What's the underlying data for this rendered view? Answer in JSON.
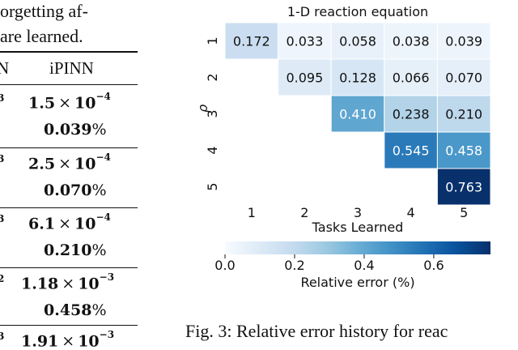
{
  "paper": {
    "text_line_1": "orgetting af-",
    "text_line_2": "are learned.",
    "caption": "Fig. 3: Relative error history for reac"
  },
  "table": {
    "headers": [
      "N",
      "iPINN"
    ],
    "rows": [
      {
        "prev_sup": "3",
        "mantissa": "1.5",
        "exponent": "−4",
        "percent": "0.039"
      },
      {
        "prev_sup": "3",
        "mantissa": "2.5",
        "exponent": "−4",
        "percent": "0.070"
      },
      {
        "prev_sup": "3",
        "mantissa": "6.1",
        "exponent": "−4",
        "percent": "0.210"
      },
      {
        "prev_sup": "2",
        "mantissa": "1.18",
        "exponent": "−3",
        "percent": "0.458"
      },
      {
        "prev_sup": "3",
        "mantissa": "1.91",
        "exponent": "−3",
        "percent": ""
      }
    ],
    "times_symbol": "×",
    "base": "10",
    "percent_sign": "%"
  },
  "chart_data": {
    "type": "heatmap",
    "title": "1-D reaction equation",
    "xlabel": "Tasks Learned",
    "ylabel": "ρ",
    "x_categories": [
      "1",
      "2",
      "3",
      "4",
      "5"
    ],
    "y_categories": [
      "1",
      "2",
      "3",
      "4",
      "5"
    ],
    "values": [
      [
        0.172,
        0.033,
        0.058,
        0.038,
        0.039
      ],
      [
        null,
        0.095,
        0.128,
        0.066,
        0.07
      ],
      [
        null,
        null,
        0.41,
        0.238,
        0.21
      ],
      [
        null,
        null,
        null,
        0.545,
        0.458
      ],
      [
        null,
        null,
        null,
        null,
        0.763
      ]
    ],
    "colorbar": {
      "label": "Relative error (%)",
      "range": [
        0,
        0.763
      ],
      "ticks": [
        "0.0",
        "0.2",
        "0.4",
        "0.6"
      ],
      "tick_values": [
        0.0,
        0.2,
        0.4,
        0.6
      ],
      "orientation": "horizontal",
      "colormap": "Blues"
    }
  }
}
